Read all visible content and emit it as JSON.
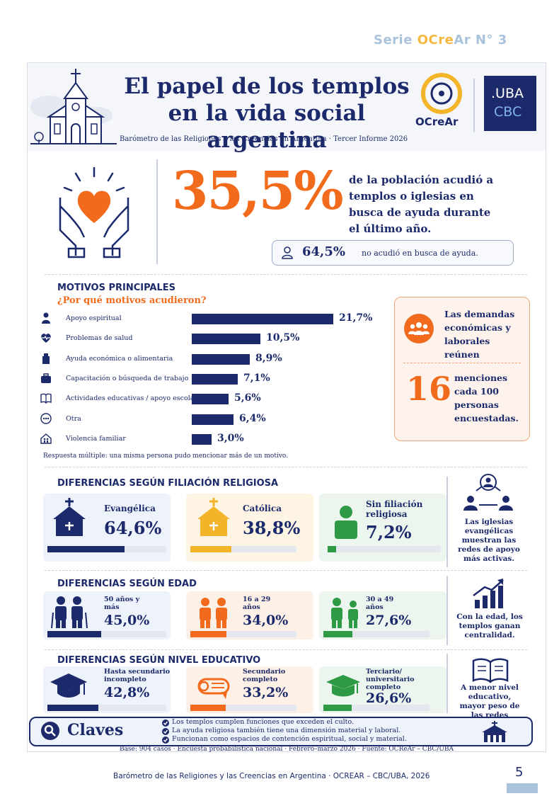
{
  "series_tag": {
    "prefix": "Serie ",
    "o": "OCre",
    "rest": "Ar N° 3"
  },
  "header": {
    "title": "El papel de los templos en la vida social argentina",
    "subtitle": "Barómetro de las Religiones y las Creencias en Argentina · Tercer Informe 2026",
    "ocrear_logo": "OCreAr",
    "uba_logo_top": ".UBA",
    "uba_logo_bottom": "CBC"
  },
  "headline": {
    "value": "35,5%",
    "text": "de la población acudió a templos o iglesias en busca de ayuda durante el último año.",
    "pill_value": "64,5%",
    "pill_text": "no acudió en busca de ayuda."
  },
  "motivos": {
    "title": "MOTIVOS PRINCIPALES",
    "subtitle": "¿Por qué motivos acudieron?",
    "items": [
      {
        "label": "Apoyo espiritual",
        "value": "21,7%",
        "pct": 21.7,
        "icon": "person-pray-icon"
      },
      {
        "label": "Problemas de salud",
        "value": "10,5%",
        "pct": 10.5,
        "icon": "heart-pulse-icon"
      },
      {
        "label": "Ayuda económica o alimentaria",
        "value": "8,9%",
        "pct": 8.9,
        "icon": "food-bag-icon"
      },
      {
        "label": "Capacitación o búsqueda de trabajo",
        "value": "7,1%",
        "pct": 7.1,
        "icon": "briefcase-icon"
      },
      {
        "label": "Actividades educativas / apoyo escolar",
        "value": "5,6%",
        "pct": 5.6,
        "icon": "book-icon"
      },
      {
        "label": "Otra",
        "value": "6,4%",
        "pct": 6.4,
        "icon": "dots-icon"
      },
      {
        "label": "Violencia familiar",
        "value": "3,0%",
        "pct": 3.0,
        "icon": "house-family-icon"
      }
    ],
    "footnote": "Respuesta múltiple: una misma persona pudo mencionar más de un motivo."
  },
  "side_box": {
    "top_text": "Las demandas económicas y laborales reúnen",
    "number": "16",
    "bottom_text": "menciones cada 100 personas encuestadas."
  },
  "filiacion": {
    "title": "DIFERENCIAS SEGÚN FILIACIÓN RELIGIOSA",
    "groups": [
      {
        "label": "Evangélica",
        "value": "64,6%",
        "pct": 64.6,
        "color": "#1c2a6b"
      },
      {
        "label": "Católica",
        "value": "38,8%",
        "pct": 38.8,
        "color": "#f4b42a"
      },
      {
        "label": "Sin filiación religiosa",
        "value": "7,2%",
        "pct": 7.2,
        "color": "#2f9a45"
      }
    ],
    "note": "Las iglesias evangélicas muestran las redes de apoyo más activas."
  },
  "edad": {
    "title": "DIFERENCIAS SEGÚN EDAD",
    "groups": [
      {
        "label": "50 años y más",
        "value": "45,0%",
        "pct": 45.0,
        "color": "#1c2a6b"
      },
      {
        "label": "16 a 29 años",
        "value": "34,0%",
        "pct": 34.0,
        "color": "#f26a1b"
      },
      {
        "label": "30 a 49 años",
        "value": "27,6%",
        "pct": 27.6,
        "color": "#2f9a45"
      }
    ],
    "note": "Con la edad, los templos ganan centralidad."
  },
  "educativo": {
    "title": "DIFERENCIAS SEGÚN NIVEL EDUCATIVO",
    "groups": [
      {
        "label": "Hasta secundario incompleto",
        "value": "42,8%",
        "pct": 42.8,
        "color": "#1c2a6b"
      },
      {
        "label": "Secundario completo",
        "value": "33,2%",
        "pct": 33.2,
        "color": "#f26a1b"
      },
      {
        "label": "Terciario/ universitario completo",
        "value": "26,6%",
        "pct": 26.6,
        "color": "#2f9a45"
      }
    ],
    "note": "A menor nivel educativo, mayor peso de las redes religiosas."
  },
  "claves": {
    "title": "Claves",
    "items": [
      "Los templos cumplen funciones que exceden el culto.",
      "La ayuda religiosa también tiene una dimensión material y laboral.",
      "Funcionan como espacios de contención espiritual, social y material."
    ]
  },
  "base": "Base: 904 casos · Encuesta probabilística nacional · Febrero–marzo 2026 · Fuente: OCReAr – CBC/UBA",
  "footer": "Barómetro de las Religiones y las Creencias en Argentina · OCREAR – CBC/UBA, 2026",
  "page_number": "5"
}
